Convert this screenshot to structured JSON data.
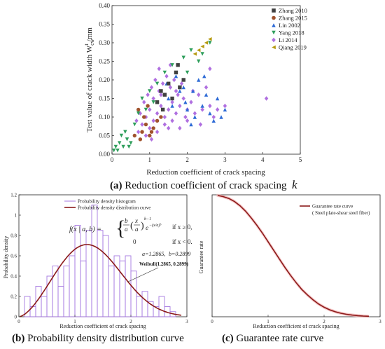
{
  "colors": {
    "zhang2010": "#404040",
    "zhang2015": "#a0522d",
    "lin2002": "#2e6bd6",
    "yang2018": "#2e9e5b",
    "li2014": "#b070e0",
    "qiang2019": "#b59a10",
    "curve": "#8b1a1a",
    "histogram": "#a678e0"
  },
  "captions": {
    "a": {
      "label": "(a)",
      "text": "Reduction coefficient of crack spacing",
      "symbol": "k"
    },
    "b": {
      "label": "(b)",
      "text": "Probability density distribution curve"
    },
    "c": {
      "label": "(c)",
      "text": "Guarantee rate curve"
    }
  },
  "chart_data": [
    {
      "type": "scatter",
      "xlabel": "Reduction coefficient of crack spacing",
      "ylabel": "Test value of crack width W",
      "ylabel_sub": "cw",
      "ylabel_sup": "t",
      "ylabel_unit": "/mm",
      "xlim": [
        0,
        5
      ],
      "ylim": [
        0,
        0.4
      ],
      "xticks": [
        "0",
        "1",
        "2",
        "3",
        "4",
        "5"
      ],
      "yticks": [
        "0.00",
        "0.05",
        "0.10",
        "0.15",
        "0.20",
        "0.25",
        "0.30",
        "0.35",
        "0.40"
      ],
      "legend_position": "top-right",
      "series": [
        {
          "name": "Zhang 2010",
          "marker": "square",
          "color": "#404040",
          "points": [
            [
              1.3,
              0.17
            ],
            [
              1.5,
              0.19
            ],
            [
              1.7,
              0.22
            ],
            [
              1.8,
              0.18
            ],
            [
              1.4,
              0.16
            ],
            [
              1.6,
              0.15
            ],
            [
              1.2,
              0.14
            ],
            [
              1.9,
              0.2
            ],
            [
              1.35,
              0.12
            ],
            [
              1.75,
              0.24
            ]
          ]
        },
        {
          "name": "Zhang 2015",
          "marker": "circle",
          "color": "#a0522d",
          "points": [
            [
              0.6,
              0.05
            ],
            [
              0.8,
              0.06
            ],
            [
              0.9,
              0.08
            ],
            [
              1.0,
              0.05
            ],
            [
              1.1,
              0.07
            ],
            [
              1.2,
              0.09
            ],
            [
              0.7,
              0.12
            ],
            [
              1.3,
              0.1
            ],
            [
              0.75,
              0.04
            ],
            [
              0.95,
              0.13
            ],
            [
              1.05,
              0.06
            ],
            [
              0.85,
              0.1
            ]
          ]
        },
        {
          "name": "Lin 2002",
          "marker": "triangle-up",
          "color": "#2e6bd6",
          "points": [
            [
              1.5,
              0.15
            ],
            [
              1.8,
              0.17
            ],
            [
              2.0,
              0.12
            ],
            [
              2.2,
              0.1
            ],
            [
              2.4,
              0.13
            ],
            [
              2.6,
              0.11
            ],
            [
              2.8,
              0.15
            ],
            [
              3.0,
              0.12
            ],
            [
              2.3,
              0.2
            ],
            [
              1.9,
              0.18
            ],
            [
              2.1,
              0.08
            ],
            [
              2.5,
              0.16
            ],
            [
              1.7,
              0.21
            ],
            [
              2.7,
              0.09
            ],
            [
              1.6,
              0.13
            ],
            [
              2.45,
              0.21
            ],
            [
              1.95,
              0.14
            ],
            [
              2.9,
              0.1
            ],
            [
              1.45,
              0.19
            ],
            [
              2.15,
              0.17
            ]
          ]
        },
        {
          "name": "Yang 2018",
          "marker": "triangle-down",
          "color": "#2e9e5b",
          "points": [
            [
              0.05,
              0.01
            ],
            [
              0.1,
              0.02
            ],
            [
              0.15,
              0.01
            ],
            [
              0.2,
              0.03
            ],
            [
              0.3,
              0.02
            ],
            [
              0.4,
              0.04
            ],
            [
              0.5,
              0.03
            ],
            [
              0.35,
              0.06
            ],
            [
              0.6,
              0.08
            ],
            [
              0.8,
              0.15
            ],
            [
              1.0,
              0.17
            ],
            [
              1.2,
              0.19
            ],
            [
              1.4,
              0.22
            ],
            [
              1.6,
              0.24
            ],
            [
              1.9,
              0.26
            ],
            [
              2.1,
              0.28
            ],
            [
              2.3,
              0.25
            ],
            [
              2.6,
              0.3
            ],
            [
              0.9,
              0.12
            ],
            [
              1.1,
              0.14
            ],
            [
              0.25,
              0.05
            ],
            [
              0.45,
              0.02
            ],
            [
              0.7,
              0.11
            ],
            [
              2.0,
              0.22
            ],
            [
              2.4,
              0.27
            ]
          ]
        },
        {
          "name": "Li 2014",
          "marker": "diamond",
          "color": "#b070e0",
          "points": [
            [
              0.7,
              0.06
            ],
            [
              0.8,
              0.08
            ],
            [
              0.9,
              0.1
            ],
            [
              1.0,
              0.12
            ],
            [
              1.1,
              0.09
            ],
            [
              1.2,
              0.11
            ],
            [
              1.3,
              0.13
            ],
            [
              1.4,
              0.1
            ],
            [
              1.5,
              0.12
            ],
            [
              1.6,
              0.14
            ],
            [
              1.7,
              0.11
            ],
            [
              1.8,
              0.13
            ],
            [
              1.9,
              0.15
            ],
            [
              2.0,
              0.12
            ],
            [
              2.1,
              0.14
            ],
            [
              2.2,
              0.11
            ],
            [
              2.4,
              0.12
            ],
            [
              2.6,
              0.13
            ],
            [
              2.8,
              0.12
            ],
            [
              3.0,
              0.13
            ],
            [
              4.1,
              0.15
            ],
            [
              0.85,
              0.14
            ],
            [
              0.95,
              0.16
            ],
            [
              1.05,
              0.18
            ],
            [
              1.15,
              0.2
            ],
            [
              1.25,
              0.17
            ],
            [
              1.35,
              0.19
            ],
            [
              1.45,
              0.21
            ],
            [
              1.55,
              0.18
            ],
            [
              1.65,
              0.2
            ],
            [
              1.75,
              0.16
            ],
            [
              1.85,
              0.19
            ],
            [
              0.75,
              0.11
            ],
            [
              1.0,
              0.07
            ],
            [
              1.2,
              0.06
            ],
            [
              1.4,
              0.08
            ],
            [
              1.6,
              0.09
            ],
            [
              1.8,
              0.07
            ],
            [
              2.0,
              0.09
            ],
            [
              2.3,
              0.16
            ],
            [
              2.5,
              0.18
            ],
            [
              2.7,
              0.1
            ],
            [
              1.1,
              0.15
            ],
            [
              1.3,
              0.16
            ],
            [
              1.5,
              0.07
            ],
            [
              1.7,
              0.17
            ],
            [
              0.9,
              0.05
            ],
            [
              1.95,
              0.1
            ],
            [
              2.15,
              0.17
            ],
            [
              1.25,
              0.23
            ],
            [
              2.6,
              0.23
            ],
            [
              1.55,
              0.24
            ],
            [
              0.65,
              0.09
            ],
            [
              1.05,
              0.04
            ],
            [
              2.35,
              0.08
            ]
          ]
        },
        {
          "name": "Qiang 2019",
          "marker": "triangle-left",
          "color": "#b59a10",
          "points": [
            [
              2.2,
              0.27
            ],
            [
              2.4,
              0.29
            ],
            [
              2.5,
              0.3
            ],
            [
              2.6,
              0.31
            ],
            [
              2.3,
              0.28
            ]
          ]
        }
      ]
    },
    {
      "type": "bar",
      "xlabel": "Reduction coefficient of crack spacing",
      "ylabel": "Probability density",
      "xlim": [
        0,
        3
      ],
      "ylim": [
        0,
        1.2
      ],
      "xticks": [
        "0",
        "1",
        "2",
        "3"
      ],
      "yticks": [
        "0",
        "0.2",
        "0.4",
        "0.6",
        "0.8",
        "1",
        "1.2"
      ],
      "legend_position": "top-left",
      "bin_width": 0.1,
      "bin_start": 0.1,
      "series": [
        {
          "name": "Probability density histogram",
          "kind": "histogram",
          "values": [
            0.2,
            0.1,
            0.3,
            0.2,
            0.4,
            0.5,
            0.3,
            0.5,
            0.6,
            0.9,
            0.55,
            0.85,
            1.1,
            0.85,
            0.8,
            0.5,
            0.6,
            0.55,
            0.6,
            0.45,
            0.2,
            0.25,
            0.15,
            0.1,
            0.2,
            0.1,
            0.05
          ]
        },
        {
          "name": "Probability density distribution curve",
          "kind": "weibull",
          "scale": 1.2865,
          "shape": 0.2899
        }
      ],
      "annotations": {
        "formula_lhs": "f(x | a, b) =",
        "formula_branch1_cond": "if  x ≥ 0,",
        "formula_branch2_val": "0",
        "formula_branch2_cond": "if  x < 0.",
        "params_a": "a=1.2865,",
        "params_b": "b=0.2899",
        "label": "Weibull(1.2865, 0.2899)"
      }
    },
    {
      "type": "line",
      "xlabel": "Reduction coefficient of crack spacing",
      "ylabel": "Guarantee rate",
      "xlim": [
        0,
        3
      ],
      "ylim": [
        0,
        1
      ],
      "xticks": [
        "0",
        "1",
        "2",
        "3"
      ],
      "legend_position": "top-right",
      "series": [
        {
          "name": "Guarantee rate curve",
          "note": "( Steel plate-shear steel fiber)",
          "x": [
            0.1,
            0.2,
            0.3,
            0.4,
            0.5,
            0.6,
            0.7,
            0.8,
            0.9,
            1.0,
            1.1,
            1.2,
            1.3,
            1.4,
            1.5,
            1.6,
            1.7,
            1.8,
            1.9,
            2.0,
            2.1,
            2.2,
            2.3,
            2.4,
            2.5,
            2.6,
            2.7,
            2.8
          ],
          "y": [
            0.995,
            0.985,
            0.97,
            0.945,
            0.91,
            0.865,
            0.81,
            0.75,
            0.685,
            0.615,
            0.545,
            0.475,
            0.405,
            0.34,
            0.28,
            0.225,
            0.18,
            0.14,
            0.105,
            0.078,
            0.057,
            0.041,
            0.029,
            0.02,
            0.014,
            0.009,
            0.006,
            0.004
          ]
        }
      ]
    }
  ]
}
